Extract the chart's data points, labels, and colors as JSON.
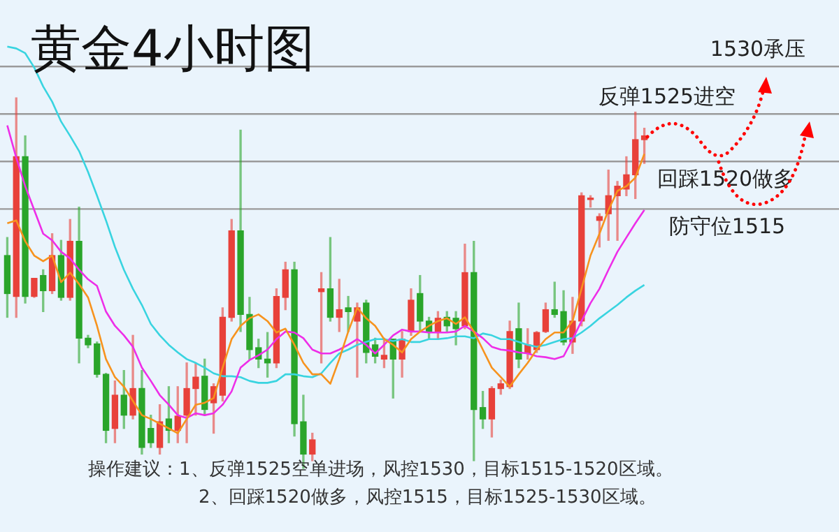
{
  "chart_data": {
    "type": "candlestick",
    "title": "黄金4小时图",
    "categories": [
      null,
      null,
      null,
      null,
      null,
      null,
      null,
      null,
      null,
      null,
      null,
      null,
      null,
      null,
      null,
      null,
      null,
      null,
      null,
      null,
      null,
      null,
      null,
      null,
      null,
      null,
      null,
      null,
      null,
      null,
      null,
      null,
      null,
      null,
      null,
      null,
      null,
      null,
      null,
      null,
      null,
      null,
      null,
      null,
      null,
      null,
      null,
      null,
      null,
      null,
      null,
      null,
      null,
      null,
      null,
      null,
      null,
      null,
      null,
      null,
      null,
      null,
      null,
      null,
      null,
      null,
      null,
      null,
      null,
      null,
      null,
      null
    ],
    "ohlc": [
      [
        1510.1,
        1512.0,
        1503.6,
        1506.1
      ],
      [
        1505.8,
        1526.7,
        1503.6,
        1520.5
      ],
      [
        1520.5,
        1522.7,
        1505.1,
        1505.8
      ],
      [
        1505.8,
        1507.7,
        1505.7,
        1507.7
      ],
      [
        1508.0,
        1508.6,
        1504.2,
        1506.4
      ],
      [
        1506.4,
        1512.4,
        1506.1,
        1510.1
      ],
      [
        1510.1,
        1511.7,
        1505.4,
        1505.7
      ],
      [
        1505.7,
        1513.9,
        1505.4,
        1511.6
      ],
      [
        1511.6,
        1515.2,
        1498.8,
        1501.4
      ],
      [
        1501.4,
        1501.7,
        1500.4,
        1500.7
      ],
      [
        1500.8,
        1501.0,
        1497.3,
        1497.6
      ],
      [
        1497.6,
        1497.7,
        1490.4,
        1491.7
      ],
      [
        1491.9,
        1496.9,
        1490.4,
        1495.4
      ],
      [
        1495.4,
        1498.0,
        1491.9,
        1493.3
      ],
      [
        1493.3,
        1501.7,
        1492.9,
        1496.1
      ],
      [
        1496.1,
        1498.0,
        1489.2,
        1489.9
      ],
      [
        1491.9,
        1493.3,
        1489.9,
        1490.4
      ],
      [
        1489.9,
        1494.4,
        1489.2,
        1492.6
      ],
      [
        1492.9,
        1496.3,
        1490.4,
        1491.7
      ],
      [
        1491.7,
        1496.3,
        1490.4,
        1493.2
      ],
      [
        1493.3,
        1498.8,
        1490.4,
        1496.1
      ],
      [
        1496.1,
        1498.8,
        1493.3,
        1497.3
      ],
      [
        1497.4,
        1499.2,
        1493.3,
        1493.9
      ],
      [
        1494.6,
        1496.6,
        1491.4,
        1496.3
      ],
      [
        1495.4,
        1504.6,
        1494.8,
        1503.6
      ],
      [
        1503.6,
        1513.9,
        1503.2,
        1512.7
      ],
      [
        1512.7,
        1523.3,
        1502.1,
        1503.9
      ],
      [
        1503.9,
        1505.7,
        1499.2,
        1500.2
      ],
      [
        1500.4,
        1501.3,
        1498.3,
        1499.2
      ],
      [
        1499.2,
        1502.0,
        1497.3,
        1498.8
      ],
      [
        1498.8,
        1506.6,
        1498.3,
        1505.8
      ],
      [
        1505.7,
        1509.4,
        1504.4,
        1508.6
      ],
      [
        1508.6,
        1509.4,
        1491.1,
        1492.4
      ],
      [
        1492.6,
        1495.4,
        1487.7,
        1489.2
      ],
      [
        1489.2,
        1491.4,
        1488.5,
        1490.7
      ],
      [
        1506.3,
        1508.3,
        1498.8,
        1506.6
      ],
      [
        1506.6,
        1512.0,
        1503.2,
        1503.6
      ],
      [
        1503.6,
        1507.6,
        1502.1,
        1504.4
      ],
      [
        1504.6,
        1505.8,
        1502.1,
        1504.2
      ],
      [
        1503.2,
        1505.1,
        1497.3,
        1504.6
      ],
      [
        1505.1,
        1505.4,
        1498.8,
        1499.9
      ],
      [
        1500.7,
        1501.4,
        1498.8,
        1499.5
      ],
      [
        1499.2,
        1501.4,
        1498.3,
        1499.6
      ],
      [
        1501.3,
        1501.3,
        1495.1,
        1499.2
      ],
      [
        1499.2,
        1502.1,
        1497.3,
        1501.3
      ],
      [
        1502.1,
        1506.6,
        1501.7,
        1505.4
      ],
      [
        1506.1,
        1508.0,
        1502.1,
        1503.2
      ],
      [
        1503.2,
        1503.6,
        1501.3,
        1502.0
      ],
      [
        1502.1,
        1504.2,
        1501.3,
        1503.5
      ],
      [
        1503.6,
        1504.2,
        1502.1,
        1502.7
      ],
      [
        1503.5,
        1504.2,
        1500.7,
        1502.4
      ],
      [
        1502.7,
        1511.3,
        1502.4,
        1508.3
      ],
      [
        1508.3,
        1511.6,
        1488.5,
        1493.9
      ],
      [
        1494.1,
        1495.8,
        1491.9,
        1492.9
      ],
      [
        1492.9,
        1496.3,
        1491.0,
        1496.1
      ],
      [
        1496.1,
        1497.0,
        1495.5,
        1496.6
      ],
      [
        1496.3,
        1503.2,
        1496.1,
        1502.1
      ],
      [
        1502.4,
        1505.1,
        1498.3,
        1499.2
      ],
      [
        1499.8,
        1502.4,
        1499.2,
        1500.7
      ],
      [
        1500.2,
        1502.1,
        1499.9,
        1502.0
      ],
      [
        1502.1,
        1505.1,
        1502.0,
        1504.4
      ],
      [
        1504.4,
        1507.3,
        1503.6,
        1503.9
      ],
      [
        1504.2,
        1506.4,
        1500.7,
        1501.0
      ],
      [
        1501.0,
        1505.7,
        1499.8,
        1503.2
      ],
      [
        1503.2,
        1516.7,
        1502.7,
        1516.4
      ],
      [
        1516.0,
        1516.4,
        1515.2,
        1516.1
      ],
      [
        1513.8,
        1514.5,
        1511.0,
        1514.2
      ],
      [
        1514.5,
        1519.1,
        1511.7,
        1516.4
      ],
      [
        1516.4,
        1517.9,
        1511.7,
        1517.4
      ],
      [
        1517.1,
        1520.5,
        1516.4,
        1518.6
      ],
      [
        1518.6,
        1525.2,
        1516.1,
        1522.3
      ],
      [
        1522.3,
        1523.5,
        1519.8,
        1522.7
      ]
    ],
    "series": [
      {
        "type": "line",
        "color": "#f7931e",
        "values": [
          1513.5,
          1513.8,
          1511.6,
          1510.1,
          1509.5,
          1510.1,
          1507.3,
          1508.3,
          1507.1,
          1505.7,
          1502.7,
          1499.2,
          1497.3,
          1496.3,
          1494.8,
          1493.3,
          1492.9,
          1492.4,
          1491.9,
          1491.4,
          1492.9,
          1494.4,
          1494.6,
          1495.1,
          1498.3,
          1501.3,
          1502.7,
          1503.5,
          1503.9,
          1503.2,
          1502.0,
          1502.4,
          1500.7,
          1498.8,
          1497.6,
          1497.6,
          1496.6,
          1499.2,
          1502.1,
          1504.6,
          1503.5,
          1502.7,
          1501.3,
          1500.7,
          1499.9,
          1501.3,
          1502.1,
          1502.7,
          1503.2,
          1503.5,
          1502.9,
          1503.6,
          1502.1,
          1500.2,
          1498.3,
          1497.3,
          1496.3,
          1497.6,
          1498.8,
          1500.2,
          1501.3,
          1502.0,
          1502.0,
          1503.2,
          1506.6,
          1510.1,
          1512.4,
          1514.9,
          1516.9,
          1517.4,
          1518.3,
          1520.8
        ]
      },
      {
        "type": "line",
        "color": "#ee2ee8",
        "values": [
          1523.8,
          1520.4,
          1517.4,
          1514.9,
          1512.4,
          1511.7,
          1510.5,
          1509.8,
          1508.6,
          1507.6,
          1506.9,
          1504.2,
          1502.7,
          1501.7,
          1500.5,
          1498.3,
          1496.9,
          1495.4,
          1494.4,
          1493.3,
          1493.0,
          1493.5,
          1493.3,
          1493.5,
          1494.4,
          1495.8,
          1498.3,
          1499.1,
          1499.6,
          1500.2,
          1501.3,
          1502.1,
          1502.0,
          1501.4,
          1500.2,
          1499.8,
          1499.8,
          1500.2,
          1500.7,
          1501.3,
          1500.7,
          1499.8,
          1500.7,
          1501.7,
          1502.3,
          1502.1,
          1502.1,
          1502.0,
          1502.0,
          1502.0,
          1502.1,
          1502.7,
          1502.1,
          1501.4,
          1500.5,
          1500.2,
          1500.1,
          1499.9,
          1499.8,
          1499.5,
          1499.4,
          1499.2,
          1499.5,
          1501.3,
          1503.2,
          1505.1,
          1506.6,
          1508.6,
          1510.5,
          1512.0,
          1513.5,
          1514.9
        ]
      },
      {
        "type": "line",
        "color": "#39d4e0",
        "values": [
          1532.1,
          1531.9,
          1531.4,
          1529.9,
          1527.9,
          1526.3,
          1524.2,
          1522.7,
          1521.1,
          1518.9,
          1516.4,
          1513.8,
          1511.0,
          1508.6,
          1506.6,
          1504.9,
          1502.9,
          1501.7,
          1500.7,
          1499.9,
          1499.2,
          1498.8,
          1498.3,
          1497.7,
          1497.4,
          1497.4,
          1497.3,
          1496.9,
          1496.7,
          1496.7,
          1496.9,
          1497.6,
          1497.6,
          1497.4,
          1497.3,
          1497.7,
          1498.8,
          1499.8,
          1500.2,
          1500.7,
          1501.0,
          1501.3,
          1501.3,
          1501.1,
          1501.3,
          1501.0,
          1501.0,
          1501.3,
          1501.3,
          1501.4,
          1501.6,
          1501.6,
          1501.4,
          1501.9,
          1501.7,
          1501.3,
          1501.3,
          1501.0,
          1500.7,
          1500.5,
          1500.7,
          1501.0,
          1501.3,
          1501.4,
          1502.0,
          1502.7,
          1503.5,
          1504.2,
          1504.9,
          1505.7,
          1506.4,
          1507.0
        ]
      }
    ],
    "ylim": [
      1481,
      1537
    ],
    "tick_labels": false,
    "legend": false,
    "ref_lines": [
      {
        "axis": "y",
        "value": 1530,
        "label": "1530承压",
        "color": "#9a9a9a"
      },
      {
        "axis": "y",
        "value": 1525,
        "label": "反弹1525进空",
        "color": "#9a9a9a"
      },
      {
        "axis": "y",
        "value": 1520,
        "label": "回踩1520做多",
        "color": "#9a9a9a"
      },
      {
        "axis": "y",
        "value": 1515,
        "label": "防守位1515",
        "color": "#9a9a9a"
      }
    ],
    "annotations": [
      "操作建议：1、反弹1525空单进场，风控1530，目标1515-1520区域。",
      "2、回踩1520做多，风控1515，目标1525-1530区域。"
    ]
  }
}
